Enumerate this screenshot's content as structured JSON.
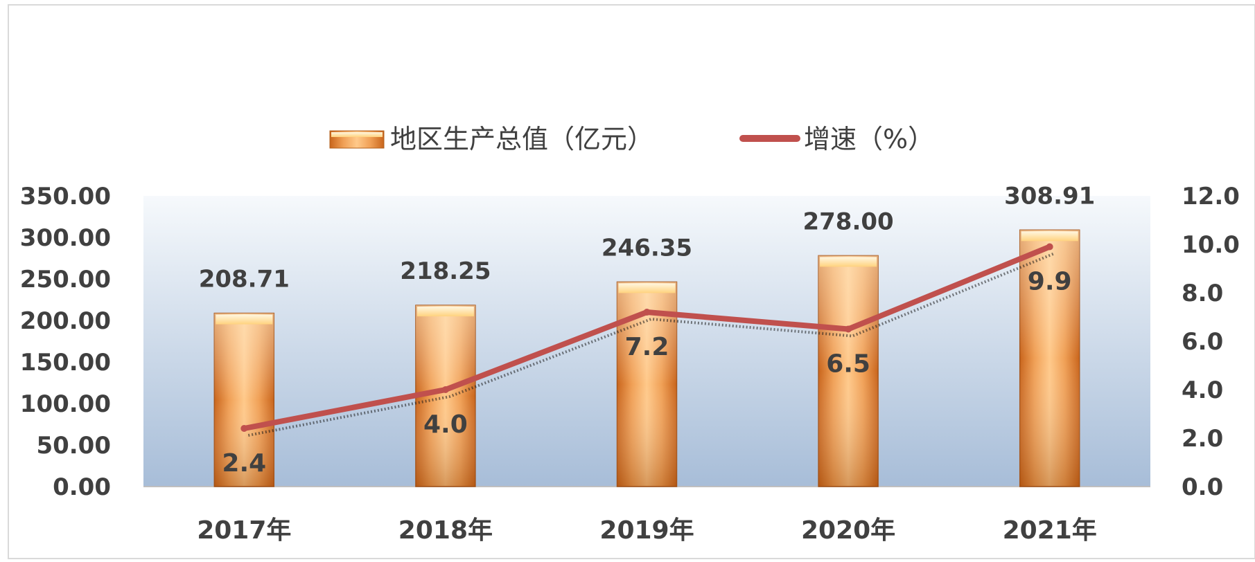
{
  "chart_data": {
    "type": "bar",
    "categories": [
      "2017年",
      "2018年",
      "2019年",
      "2020年",
      "2021年"
    ],
    "series": [
      {
        "name": "地区生产总值（亿元）",
        "type": "bar",
        "axis": "left",
        "values": [
          208.71,
          218.25,
          246.35,
          278.0,
          308.91
        ],
        "labels": [
          "208.71",
          "218.25",
          "246.35",
          "278.00",
          "308.91"
        ]
      },
      {
        "name": "增速（%）",
        "type": "line",
        "axis": "right",
        "values": [
          2.4,
          4.0,
          7.2,
          6.5,
          9.9
        ],
        "labels": [
          "2.4",
          "4.0",
          "7.2",
          "6.5",
          "9.9"
        ]
      }
    ],
    "y_left": {
      "range": [
        0,
        350
      ],
      "ticks": [
        "0.00",
        "50.00",
        "100.00",
        "150.00",
        "200.00",
        "250.00",
        "300.00",
        "350.00"
      ]
    },
    "y_right": {
      "range": [
        0,
        12
      ],
      "ticks": [
        "0.0",
        "2.0",
        "4.0",
        "6.0",
        "8.0",
        "10.0",
        "12.0"
      ]
    },
    "legend_position": "top-center",
    "grid": false,
    "colors": {
      "bar": "#e8883a",
      "bar_light": "#ffd9a6",
      "line": "#c0504d",
      "plot_bg_top": "#f4f7fb",
      "plot_bg_bottom": "#a9bfd9",
      "text": "#404040"
    }
  }
}
